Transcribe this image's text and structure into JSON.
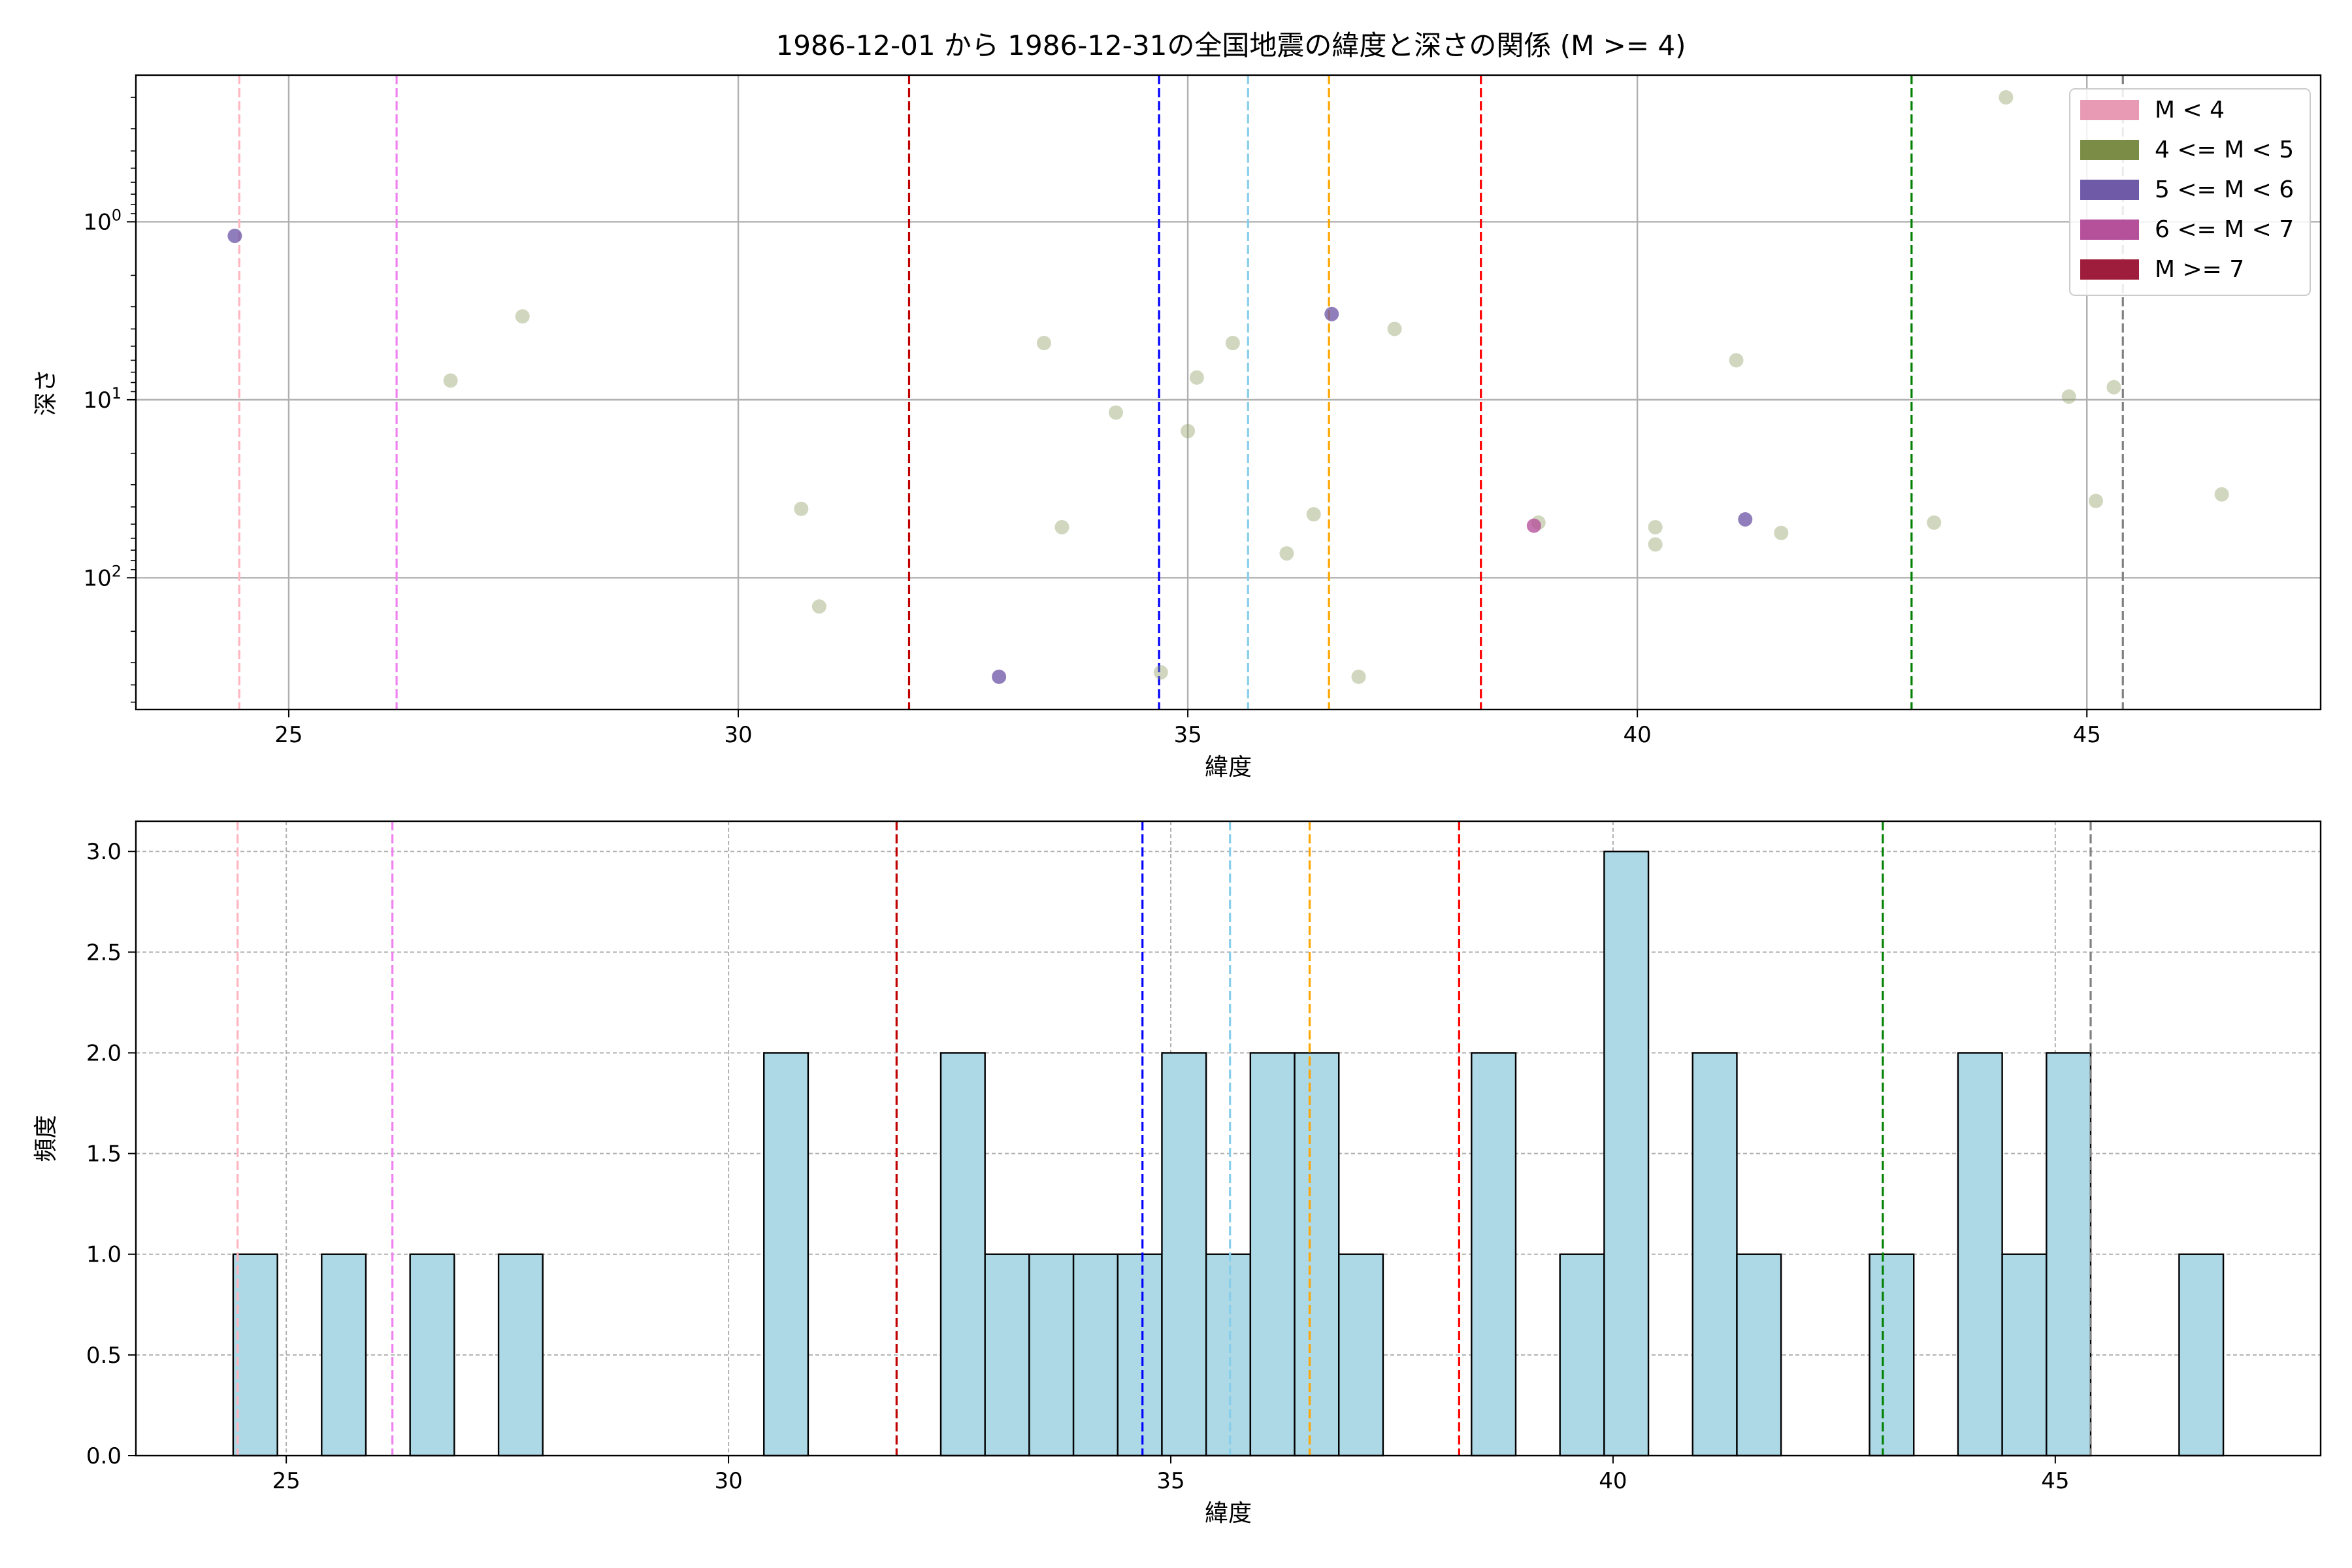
{
  "chart_data": [
    {
      "type": "scatter",
      "title": "1986-12-01 から 1986-12-31の全国地震の緯度と深さの関係 (M >= 4)",
      "xlabel": "緯度",
      "ylabel": "深さ",
      "xlim": [
        23.3,
        47.6
      ],
      "ylim": [
        550,
        0.15
      ],
      "yscale": "log",
      "y_inverted": true,
      "xticks": [
        "25",
        "30",
        "35",
        "40",
        "45"
      ],
      "xtick_values": [
        25,
        30,
        35,
        40,
        45
      ],
      "yticks": [
        "10^0",
        "10^1",
        "10^2"
      ],
      "ytick_values": [
        1,
        10,
        100
      ],
      "grid": true,
      "legend_position": "top-right",
      "legend": [
        {
          "label": "M < 4",
          "color": "#e89ab5"
        },
        {
          "label": "4 <= M < 5",
          "color": "#7a8c45"
        },
        {
          "label": "5 <= M < 6",
          "color": "#6f5aa8"
        },
        {
          "label": "6 <= M < 7",
          "color": "#b5509a"
        },
        {
          "label": "M >= 7",
          "color": "#9e1c3c"
        }
      ],
      "vlines": [
        {
          "x": 24.45,
          "color": "#ffb6c1"
        },
        {
          "x": 26.2,
          "color": "#ee82ee"
        },
        {
          "x": 31.9,
          "color": "#c00000"
        },
        {
          "x": 34.68,
          "color": "#0000ff"
        },
        {
          "x": 35.67,
          "color": "#87ceeb"
        },
        {
          "x": 36.57,
          "color": "#ffa500"
        },
        {
          "x": 38.26,
          "color": "#ff0000"
        },
        {
          "x": 43.05,
          "color": "#008000"
        },
        {
          "x": 45.4,
          "color": "#808080"
        }
      ],
      "points": [
        {
          "x": 24.4,
          "y": 1.2,
          "class": "5 <= M < 6"
        },
        {
          "x": 26.8,
          "y": 7.8,
          "class": "4 <= M < 5"
        },
        {
          "x": 27.6,
          "y": 3.4,
          "class": "4 <= M < 5"
        },
        {
          "x": 30.7,
          "y": 41,
          "class": "4 <= M < 5"
        },
        {
          "x": 30.9,
          "y": 145,
          "class": "4 <= M < 5"
        },
        {
          "x": 32.9,
          "y": 360,
          "class": "5 <= M < 6"
        },
        {
          "x": 33.4,
          "y": 4.8,
          "class": "4 <= M < 5"
        },
        {
          "x": 33.6,
          "y": 52,
          "class": "4 <= M < 5"
        },
        {
          "x": 34.2,
          "y": 11.8,
          "class": "4 <= M < 5"
        },
        {
          "x": 34.7,
          "y": 340,
          "class": "4 <= M < 5"
        },
        {
          "x": 35.0,
          "y": 15,
          "class": "4 <= M < 5"
        },
        {
          "x": 35.1,
          "y": 7.5,
          "class": "4 <= M < 5"
        },
        {
          "x": 35.5,
          "y": 4.8,
          "class": "4 <= M < 5"
        },
        {
          "x": 36.1,
          "y": 73,
          "class": "4 <= M < 5"
        },
        {
          "x": 36.4,
          "y": 44,
          "class": "4 <= M < 5"
        },
        {
          "x": 36.6,
          "y": 3.3,
          "class": "5 <= M < 6"
        },
        {
          "x": 36.9,
          "y": 360,
          "class": "4 <= M < 5"
        },
        {
          "x": 37.3,
          "y": 4.0,
          "class": "4 <= M < 5"
        },
        {
          "x": 38.9,
          "y": 49,
          "class": "4 <= M < 5"
        },
        {
          "x": 38.85,
          "y": 51,
          "class": "6 <= M < 7"
        },
        {
          "x": 40.2,
          "y": 52,
          "class": "4 <= M < 5"
        },
        {
          "x": 40.2,
          "y": 65,
          "class": "4 <= M < 5"
        },
        {
          "x": 41.1,
          "y": 6.0,
          "class": "4 <= M < 5"
        },
        {
          "x": 41.2,
          "y": 47,
          "class": "5 <= M < 6"
        },
        {
          "x": 41.6,
          "y": 56,
          "class": "4 <= M < 5"
        },
        {
          "x": 43.3,
          "y": 49,
          "class": "4 <= M < 5"
        },
        {
          "x": 44.1,
          "y": 0.2,
          "class": "4 <= M < 5"
        },
        {
          "x": 44.8,
          "y": 9.6,
          "class": "4 <= M < 5"
        },
        {
          "x": 45.1,
          "y": 37,
          "class": "4 <= M < 5"
        },
        {
          "x": 45.3,
          "y": 8.5,
          "class": "4 <= M < 5"
        },
        {
          "x": 46.5,
          "y": 34,
          "class": "4 <= M < 5"
        }
      ]
    },
    {
      "type": "bar",
      "title": "",
      "xlabel": "緯度",
      "ylabel": "頻度",
      "xlim": [
        23.3,
        48.0
      ],
      "ylim": [
        0,
        3.15
      ],
      "xticks": [
        "25",
        "30",
        "35",
        "40",
        "45"
      ],
      "xtick_values": [
        25,
        30,
        35,
        40,
        45
      ],
      "yticks": [
        "0.0",
        "0.5",
        "1.0",
        "1.5",
        "2.0",
        "2.5",
        "3.0"
      ],
      "ytick_values": [
        0,
        0.5,
        1.0,
        1.5,
        2.0,
        2.5,
        3.0
      ],
      "grid": true,
      "bar_color": "#add8e6",
      "bin_width": 0.5,
      "bins": [
        {
          "start": 24.4,
          "count": 1
        },
        {
          "start": 25.4,
          "count": 1
        },
        {
          "start": 26.4,
          "count": 1
        },
        {
          "start": 27.4,
          "count": 1
        },
        {
          "start": 30.4,
          "count": 2
        },
        {
          "start": 32.4,
          "count": 2
        },
        {
          "start": 32.9,
          "count": 1
        },
        {
          "start": 33.4,
          "count": 1
        },
        {
          "start": 33.9,
          "count": 1
        },
        {
          "start": 34.4,
          "count": 1
        },
        {
          "start": 34.9,
          "count": 2
        },
        {
          "start": 35.4,
          "count": 1
        },
        {
          "start": 35.9,
          "count": 2
        },
        {
          "start": 36.4,
          "count": 2
        },
        {
          "start": 36.9,
          "count": 1
        },
        {
          "start": 38.4,
          "count": 2
        },
        {
          "start": 39.4,
          "count": 1
        },
        {
          "start": 39.9,
          "count": 3
        },
        {
          "start": 40.9,
          "count": 2
        },
        {
          "start": 41.4,
          "count": 1
        },
        {
          "start": 42.9,
          "count": 1
        },
        {
          "start": 43.9,
          "count": 2
        },
        {
          "start": 44.4,
          "count": 1
        },
        {
          "start": 44.9,
          "count": 2
        },
        {
          "start": 46.4,
          "count": 1
        }
      ],
      "vlines": [
        {
          "x": 24.45,
          "color": "#ffb6c1"
        },
        {
          "x": 26.2,
          "color": "#ee82ee"
        },
        {
          "x": 31.9,
          "color": "#c00000"
        },
        {
          "x": 34.68,
          "color": "#0000ff"
        },
        {
          "x": 35.67,
          "color": "#87ceeb"
        },
        {
          "x": 36.57,
          "color": "#ffa500"
        },
        {
          "x": 38.26,
          "color": "#ff0000"
        },
        {
          "x": 43.05,
          "color": "#008000"
        },
        {
          "x": 45.4,
          "color": "#808080"
        }
      ]
    }
  ]
}
